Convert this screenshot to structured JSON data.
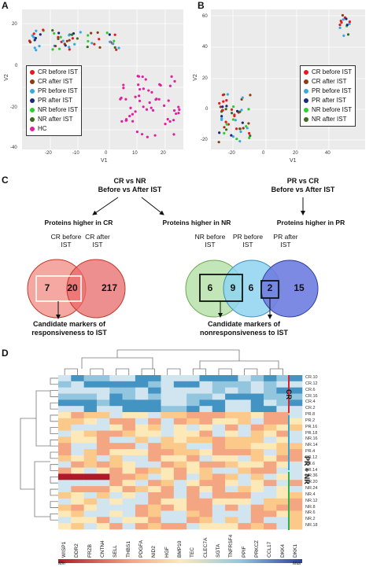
{
  "panels": {
    "a": "A",
    "b": "B",
    "c": "C",
    "d": "D"
  },
  "scatter_a": {
    "ylabel": "V2",
    "xlabel": "V1",
    "yticks": [
      "20",
      "0",
      "-20",
      "-40"
    ],
    "xticks": [
      "-20",
      "-10",
      "0",
      "10",
      "20"
    ],
    "legend": [
      {
        "label": "CR before IST",
        "color": "#e41a1c"
      },
      {
        "label": "CR after IST",
        "color": "#8c3b14"
      },
      {
        "label": "PR before IST",
        "color": "#36a9e1"
      },
      {
        "label": "PR after IST",
        "color": "#1a2a7a"
      },
      {
        "label": "NR before IST",
        "color": "#2ecc2e"
      },
      {
        "label": "NR after IST",
        "color": "#3d6b1f"
      },
      {
        "label": "HC",
        "color": "#e0209c"
      }
    ]
  },
  "scatter_b": {
    "ylabel": "V2",
    "xlabel": "V1",
    "yticks": [
      "60",
      "40",
      "20",
      "0",
      "-20"
    ],
    "xticks": [
      "-20",
      "0",
      "20",
      "40"
    ],
    "legend": [
      {
        "label": "CR before IST",
        "color": "#e41a1c"
      },
      {
        "label": "CR after IST",
        "color": "#8c3b14"
      },
      {
        "label": "PR before IST",
        "color": "#36a9e1"
      },
      {
        "label": "PR after IST",
        "color": "#1a2a7a"
      },
      {
        "label": "NR before IST",
        "color": "#2ecc2e"
      },
      {
        "label": "NR after IST",
        "color": "#3d6b1f"
      }
    ]
  },
  "panel_c": {
    "left_title_1": "CR vs NR",
    "left_title_2": "Before vs After IST",
    "right_title_1": "PR vs CR",
    "right_title_2": "Before vs After IST",
    "higher_cr": "Proteins higher in CR",
    "higher_nr": "Proteins higher in NR",
    "higher_pr": "Proteins higher in PR",
    "cr_before": "CR before IST",
    "cr_after": "CR after IST",
    "nr_before": "NR before IST",
    "pr_before": "PR before IST",
    "pr_after": "PR after IST",
    "v1_left": "7",
    "v1_mid": "20",
    "v1_right": "217",
    "v2_a": "6",
    "v2_b": "9",
    "v2_c": "6",
    "v2_d": "2",
    "v2_e": "15",
    "cand1": "Candidate markers of responsiveness to IST",
    "cand2": "Candidate markers of nonresponsiveness to IST"
  },
  "heatmap": {
    "columns": [
      "WISP1",
      "DDR2",
      "FRZB",
      "CNTN4",
      "SELL",
      "THBS1",
      "PDGFA",
      "NID2",
      "HGF",
      "BMP10",
      "TEC",
      "CLEC7A",
      "SGTA",
      "TNFRSF4",
      "PPIF",
      "PRKCZ",
      "CCL17",
      "DKK4",
      "DKK1"
    ],
    "rows": [
      "CR.10",
      "CR.12",
      "CR.6",
      "CR.16",
      "CR.4",
      "CR.2",
      "PR.8",
      "PR.2",
      "PR.16",
      "PR.18",
      "NR.16",
      "NR.14",
      "PR.4",
      "PR.12",
      "PR.6",
      "PR.14",
      "NR.36",
      "NR.20",
      "NR.24",
      "NR.4",
      "NR.12",
      "NR.8",
      "NR.6",
      "NR.2",
      "NR.18"
    ],
    "group_cr": "CR",
    "group_prnr": "PR + NR",
    "scale_min": "Min",
    "scale_max": "Max"
  }
}
